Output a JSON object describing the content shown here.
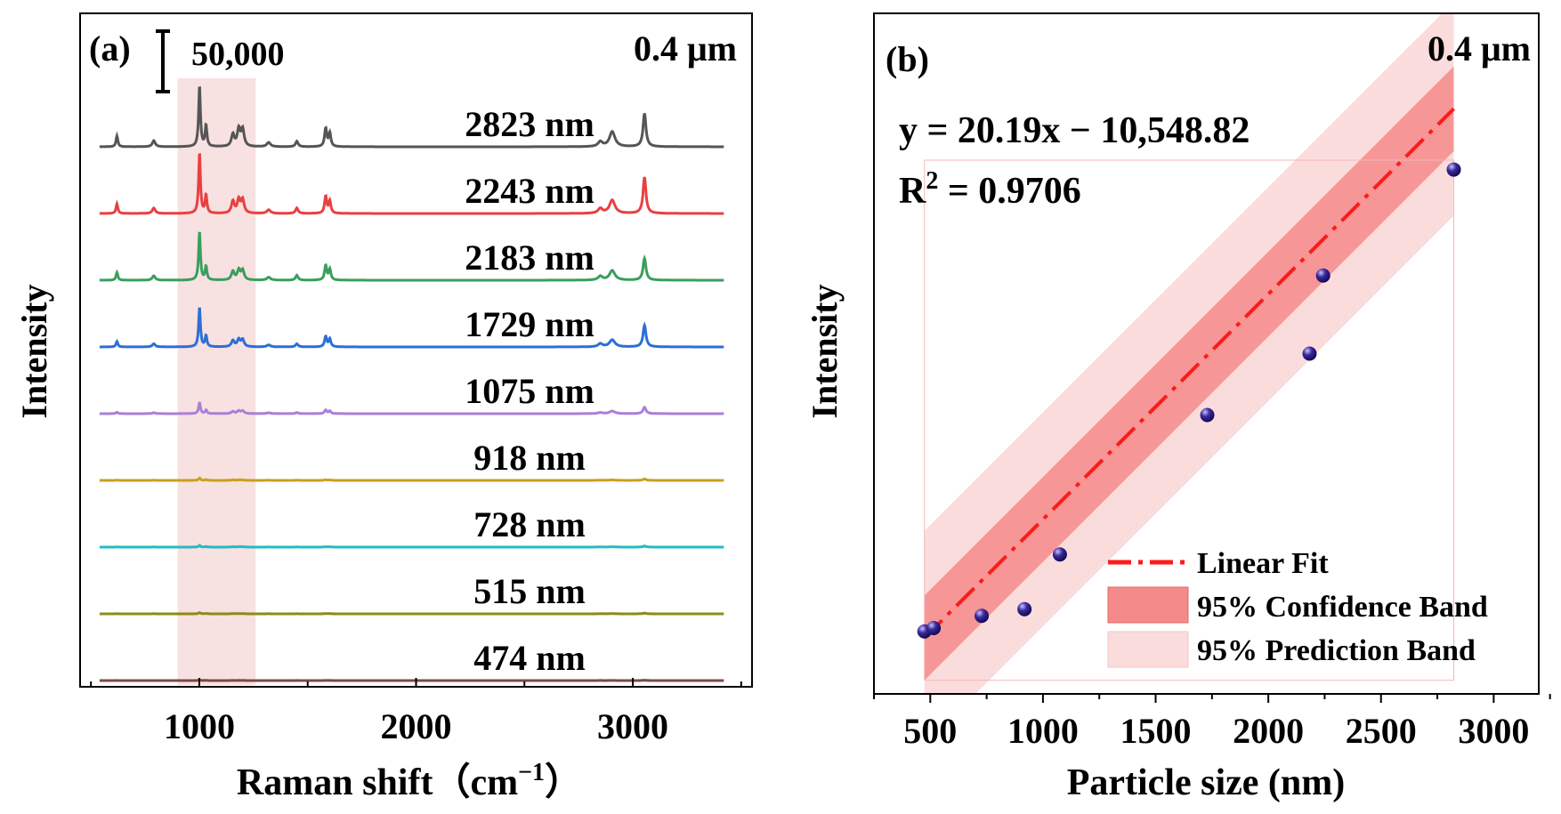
{
  "chart_data": [
    {
      "panel": "(a)",
      "type": "line",
      "title": "",
      "xlabel": "Raman shift（cm",
      "xlabel_sup": "−1",
      "xlabel_close": "）",
      "ylabel": "Intensity",
      "xlim": [
        450,
        3550
      ],
      "xticks": [
        "1000",
        "2000",
        "3000"
      ],
      "xtick_values": [
        1000,
        2000,
        3000
      ],
      "corner_label": "0.4 μm",
      "scale_bar_label": "50,000",
      "scale_bar_value": 50000,
      "highlight_region": [
        900,
        1260
      ],
      "highlight_color": "#f7dcdc",
      "peak_positions": [
        620,
        790,
        1001,
        1031,
        1155,
        1182,
        1200,
        1320,
        1450,
        1583,
        1602,
        2850,
        2905,
        3054
      ],
      "peak_widths": [
        5,
        8,
        5,
        5,
        8,
        8,
        8,
        10,
        7,
        6,
        6,
        12,
        15,
        8
      ],
      "series": [
        {
          "name": "2823 nm",
          "color": "#555555",
          "amplitude": 1.0,
          "peak_heights": [
            0.18,
            0.1,
            1.0,
            0.35,
            0.2,
            0.28,
            0.28,
            0.07,
            0.09,
            0.3,
            0.22,
            0.08,
            0.25,
            0.55
          ]
        },
        {
          "name": "2243 nm",
          "color": "#e84040",
          "amplitude": 1.0,
          "peak_heights": [
            0.16,
            0.09,
            1.0,
            0.3,
            0.2,
            0.22,
            0.22,
            0.06,
            0.09,
            0.28,
            0.2,
            0.08,
            0.22,
            0.6
          ]
        },
        {
          "name": "2183 nm",
          "color": "#3a9e5e",
          "amplitude": 0.8,
          "peak_heights": [
            0.16,
            0.09,
            1.0,
            0.28,
            0.18,
            0.2,
            0.2,
            0.06,
            0.1,
            0.3,
            0.22,
            0.08,
            0.2,
            0.45
          ]
        },
        {
          "name": "1729 nm",
          "color": "#2c6fd6",
          "amplitude": 0.65,
          "peak_heights": [
            0.14,
            0.08,
            1.0,
            0.28,
            0.16,
            0.18,
            0.18,
            0.05,
            0.08,
            0.26,
            0.2,
            0.08,
            0.18,
            0.55
          ]
        },
        {
          "name": "1075 nm",
          "color": "#a980d8",
          "amplitude": 0.3,
          "peak_heights": [
            0.08,
            0.05,
            0.6,
            0.2,
            0.12,
            0.15,
            0.15,
            0.05,
            0.06,
            0.2,
            0.15,
            0.06,
            0.14,
            0.35
          ]
        },
        {
          "name": "918 nm",
          "color": "#c9a020",
          "amplitude": 0.08,
          "peak_heights": [
            0.05,
            0.03,
            0.5,
            0.15,
            0.1,
            0.1,
            0.1,
            0.03,
            0.04,
            0.12,
            0.1,
            0.05,
            0.1,
            0.3
          ]
        },
        {
          "name": "728 nm",
          "color": "#22bcc4",
          "amplitude": 0.06,
          "peak_heights": [
            0.05,
            0.03,
            0.5,
            0.15,
            0.1,
            0.1,
            0.1,
            0.03,
            0.04,
            0.12,
            0.1,
            0.05,
            0.1,
            0.3
          ]
        },
        {
          "name": "515 nm",
          "color": "#8b8b18",
          "amplitude": 0.04,
          "peak_heights": [
            0.05,
            0.03,
            0.5,
            0.15,
            0.1,
            0.1,
            0.1,
            0.03,
            0.04,
            0.12,
            0.1,
            0.05,
            0.1,
            0.3
          ]
        },
        {
          "name": "474 nm",
          "color": "#7a4a4a",
          "amplitude": 0.02,
          "peak_heights": [
            0.05,
            0.03,
            0.5,
            0.15,
            0.1,
            0.1,
            0.1,
            0.03,
            0.04,
            0.12,
            0.1,
            0.05,
            0.1,
            0.3
          ]
        }
      ]
    },
    {
      "panel": "(b)",
      "type": "scatter",
      "title": "",
      "xlabel": "Particle size (nm)",
      "ylabel": "Intensity",
      "xlim": [
        250,
        3200
      ],
      "ylim": [
        -6000,
        55000
      ],
      "xticks": [
        "500",
        "1000",
        "1500",
        "2000",
        "2500",
        "3000"
      ],
      "xtick_values": [
        500,
        1000,
        1500,
        2000,
        2500,
        3000
      ],
      "corner_label": "0.4 μm",
      "equation": "y = 20.19x − 10,548.82",
      "r2_label": "R",
      "r2_sup": "2",
      "r2_value": " = 0.9706",
      "fit": {
        "slope": 20.19,
        "intercept": -10548.82,
        "x_range": [
          474,
          2823
        ]
      },
      "confidence_halfwidth": 3800,
      "prediction_halfwidth": 9600,
      "points": [
        {
          "x": 474,
          "y": -400
        },
        {
          "x": 515,
          "y": -100
        },
        {
          "x": 728,
          "y": 1000
        },
        {
          "x": 918,
          "y": 1600
        },
        {
          "x": 1075,
          "y": 6500
        },
        {
          "x": 1729,
          "y": 19000
        },
        {
          "x": 2183,
          "y": 24500
        },
        {
          "x": 2243,
          "y": 31500
        },
        {
          "x": 2823,
          "y": 41000
        }
      ],
      "colors": {
        "fit_line": "#ff1a1a",
        "confidence_band": "#f58a8a",
        "prediction_band": "#fbdcdc",
        "point": "#3a2a9a"
      },
      "legend": {
        "position": "bottom-right",
        "entries": [
          "Linear Fit",
          "95% Confidence Band",
          "95% Prediction Band"
        ]
      }
    }
  ]
}
